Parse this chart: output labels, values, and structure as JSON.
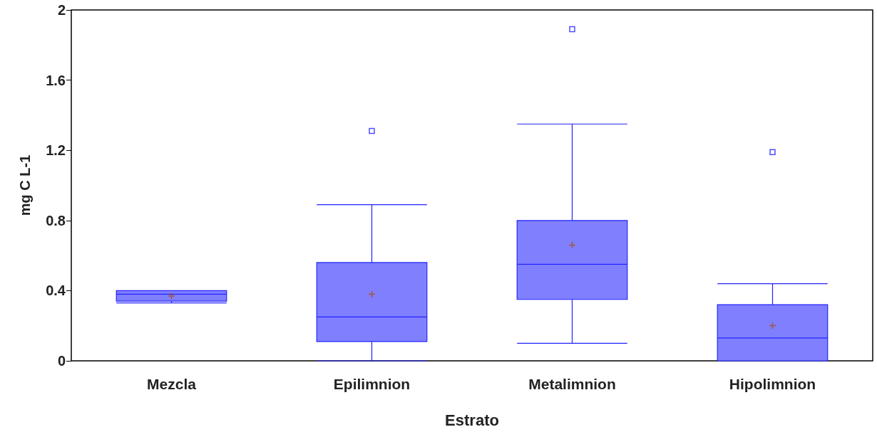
{
  "chart_data": {
    "type": "box",
    "xlabel": "Estrato",
    "ylabel": "mg C L-1",
    "categories": [
      "Mezcla",
      "Epilimnion",
      "Metalimnion",
      "Hipolimnion"
    ],
    "series": [
      {
        "color": "#8080ff",
        "boxes": [
          {
            "low": 0.33,
            "q1": 0.34,
            "median": 0.38,
            "q3": 0.4,
            "high": 0.4,
            "mean": 0.37
          },
          {
            "low": 0,
            "q1": 0.11,
            "median": 0.25,
            "q3": 0.56,
            "high": 0.89,
            "mean": 0.38,
            "outliers": [
              1.31
            ]
          },
          {
            "low": 0.1,
            "q1": 0.35,
            "median": 0.55,
            "q3": 0.8,
            "high": 1.35,
            "mean": 0.66,
            "outliers": [
              1.89
            ]
          },
          {
            "low": 0,
            "q1": 0,
            "median": 0.13,
            "q3": 0.32,
            "high": 0.44,
            "mean": 0.2,
            "outliers": [
              1.19
            ]
          }
        ]
      }
    ],
    "ylim": [
      0,
      2
    ],
    "yticks": [
      0,
      0.4,
      0.8,
      1.2,
      1.6,
      2
    ],
    "marker": "square",
    "grid": false
  }
}
